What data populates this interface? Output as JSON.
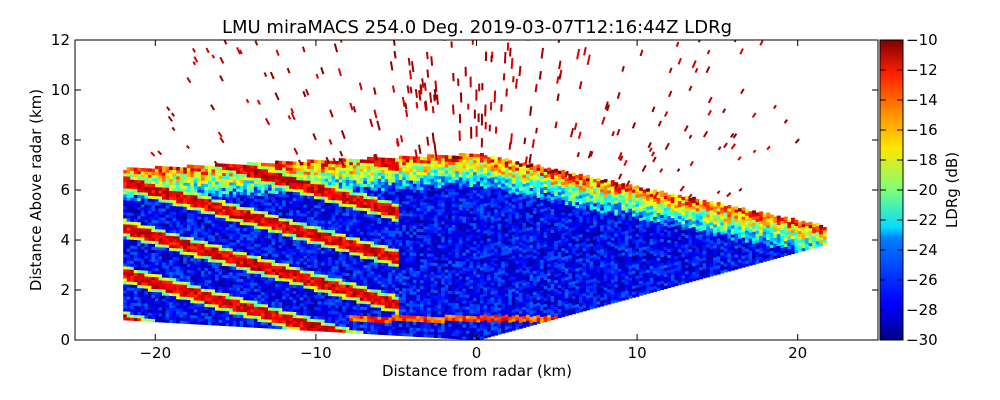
{
  "chart_data": {
    "type": "heatmap",
    "title": "LMU miraMACS 254.0 Deg. 2019-03-07T12:16:44Z  LDRg",
    "xlabel": "Distance from radar (km)",
    "ylabel": "Distance Above radar  (km)",
    "xlim": [
      -25,
      25
    ],
    "ylim": [
      0,
      12
    ],
    "x_ticks": [
      -20,
      -10,
      0,
      10,
      20
    ],
    "x_tick_labels": [
      "−20",
      "−10",
      "0",
      "10",
      "20"
    ],
    "y_ticks": [
      0,
      2,
      4,
      6,
      8,
      10,
      12
    ],
    "y_tick_labels": [
      "0",
      "2",
      "4",
      "6",
      "8",
      "10",
      "12"
    ],
    "colorbar": {
      "label": "LDRg (dB)",
      "range": [
        -30,
        -10
      ],
      "ticks": [
        -30,
        -28,
        -26,
        -24,
        -22,
        -20,
        -18,
        -16,
        -14,
        -12,
        -10
      ],
      "tick_labels": [
        "−30",
        "−28",
        "−26",
        "−24",
        "−22",
        "−20",
        "−18",
        "−16",
        "−14",
        "−12",
        "−10"
      ],
      "colormap": "jet"
    },
    "scan": {
      "azimuth_deg": 254.0,
      "left_edge": {
        "x_km": -22,
        "y_range_km": [
          0.8,
          6.8
        ]
      },
      "right_edge": {
        "x_km": 21.7,
        "y_range_km": [
          3.8,
          4.5
        ]
      },
      "lower_boundary_slope_deg": 10
    },
    "regions": [
      {
        "name": "cloud-top-noisy-band",
        "y_range_km": [
          5.5,
          7.5
        ],
        "ldr_db_range": [
          -22,
          -10
        ]
      },
      {
        "name": "main-cloud-body",
        "y_range_km": [
          1,
          6
        ],
        "ldr_db_range": [
          -30,
          -24
        ]
      },
      {
        "name": "melting-layer",
        "y_km": 0.8,
        "ldr_db_range": [
          -16,
          -12
        ]
      },
      {
        "name": "scattered-noise-aloft",
        "y_range_km": [
          7.5,
          12
        ],
        "ldr_db_range": [
          -12,
          -10
        ]
      }
    ]
  }
}
